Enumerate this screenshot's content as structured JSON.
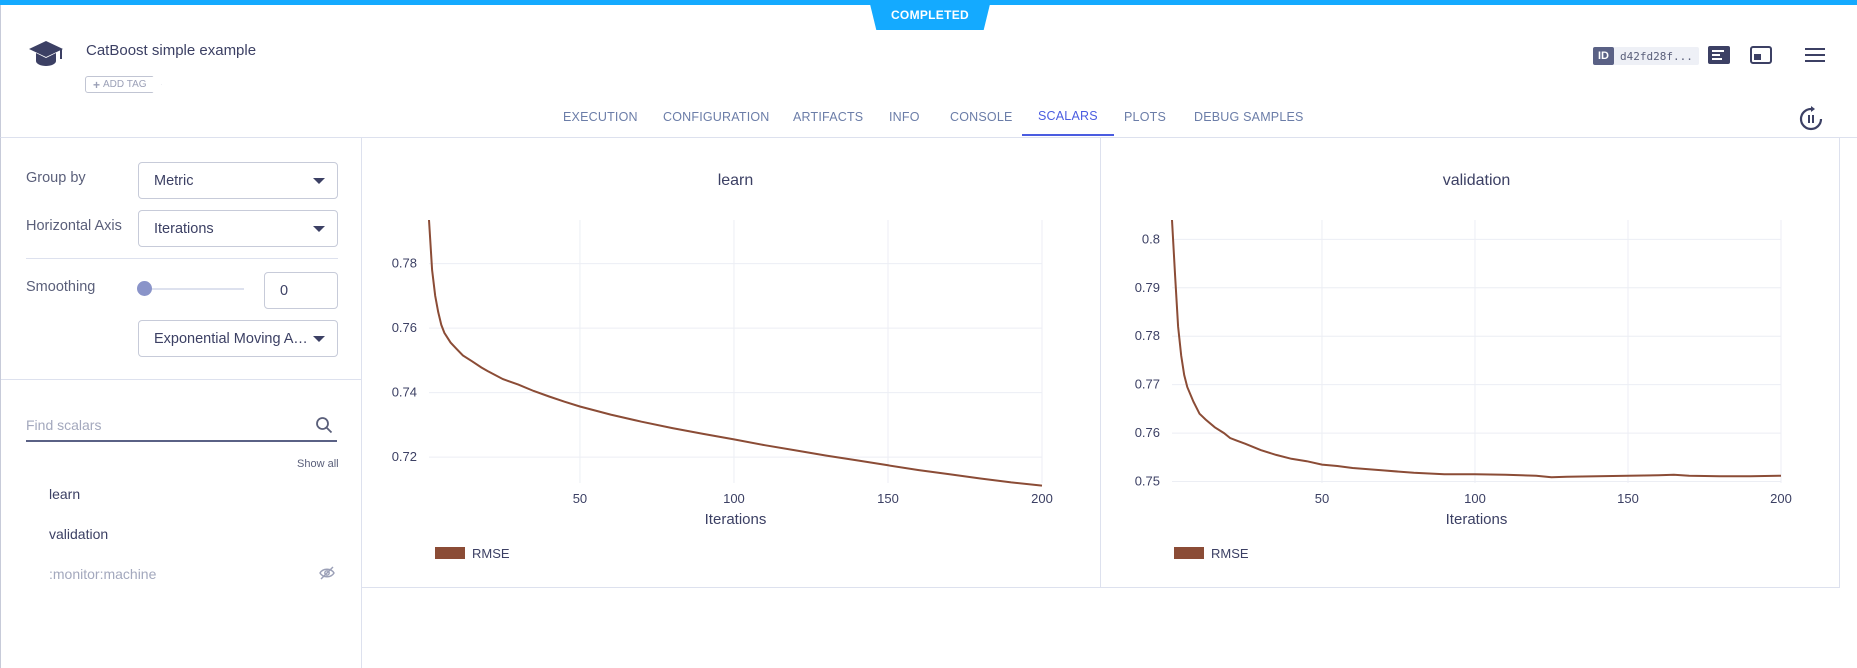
{
  "status": "COMPLETED",
  "experiment": {
    "title": "CatBoost simple example",
    "add_tag": "ADD TAG",
    "id_label": "ID",
    "id_value": "d42fd28f..."
  },
  "icons": {
    "logo": "graduation-cap-icon",
    "details": "details-panel-icon",
    "layout": "layout-icon",
    "menu": "hamburger-menu-icon",
    "refresh": "auto-refresh-icon",
    "search": "search-icon",
    "hidden": "eye-off-icon"
  },
  "tabs": [
    {
      "label": "EXECUTION",
      "active": false
    },
    {
      "label": "CONFIGURATION",
      "active": false
    },
    {
      "label": "ARTIFACTS",
      "active": false
    },
    {
      "label": "INFO",
      "active": false
    },
    {
      "label": "CONSOLE",
      "active": false
    },
    {
      "label": "SCALARS",
      "active": true
    },
    {
      "label": "PLOTS",
      "active": false
    },
    {
      "label": "DEBUG SAMPLES",
      "active": false
    }
  ],
  "sidebar": {
    "group_by_label": "Group by",
    "group_by_value": "Metric",
    "horizontal_axis_label": "Horizontal Axis",
    "horizontal_axis_value": "Iterations",
    "smoothing_label": "Smoothing",
    "smoothing_value": "0",
    "smoothing_slider_fraction": 0,
    "smoothing_type": "Exponential Moving Average",
    "search_placeholder": "Find scalars",
    "show_all": "Show all",
    "metrics": [
      {
        "label": "learn",
        "hidden": false
      },
      {
        "label": "validation",
        "hidden": false
      },
      {
        "label": ":monitor:machine",
        "hidden": true
      }
    ]
  },
  "colors": {
    "accent": "#14aaff",
    "active_tab": "#4a5ce0",
    "series": "#8b4c36"
  },
  "chart_data": [
    {
      "type": "line",
      "title": "learn",
      "xlabel": "Iterations",
      "ylabel": "",
      "xlim": [
        1,
        200
      ],
      "ylim": [
        0.712,
        0.7935
      ],
      "xticks": [
        50,
        100,
        150,
        200
      ],
      "yticks": [
        0.72,
        0.74,
        0.76,
        0.78
      ],
      "ytick_labels": [
        "0.72",
        "0.74",
        "0.76",
        "0.78"
      ],
      "grid": true,
      "legend_position": "bottom-left",
      "series": [
        {
          "name": "RMSE",
          "color": "#8b4c36",
          "x": [
            1,
            2,
            3,
            4,
            5,
            6,
            8,
            10,
            12,
            15,
            18,
            20,
            25,
            30,
            35,
            40,
            45,
            50,
            60,
            70,
            80,
            90,
            100,
            110,
            120,
            130,
            140,
            150,
            160,
            170,
            180,
            190,
            200
          ],
          "y": [
            0.7935,
            0.778,
            0.77,
            0.765,
            0.761,
            0.7585,
            0.7555,
            0.7535,
            0.7515,
            0.7497,
            0.7478,
            0.7467,
            0.7442,
            0.7425,
            0.7405,
            0.7388,
            0.7372,
            0.7357,
            0.7332,
            0.731,
            0.729,
            0.7272,
            0.7255,
            0.7237,
            0.7221,
            0.7205,
            0.719,
            0.7175,
            0.716,
            0.7147,
            0.7134,
            0.7122,
            0.7112
          ]
        }
      ]
    },
    {
      "type": "line",
      "title": "validation",
      "xlabel": "Iterations",
      "ylabel": "",
      "xlim": [
        1,
        200
      ],
      "ylim": [
        0.7497,
        0.804
      ],
      "xticks": [
        50,
        100,
        150,
        200
      ],
      "yticks": [
        0.75,
        0.76,
        0.77,
        0.78,
        0.79,
        0.8
      ],
      "ytick_labels": [
        "0.75",
        "0.76",
        "0.77",
        "0.78",
        "0.79",
        "0.8"
      ],
      "grid": true,
      "legend_position": "bottom-left",
      "series": [
        {
          "name": "RMSE",
          "color": "#8b4c36",
          "x": [
            1,
            2,
            3,
            4,
            5,
            6,
            8,
            10,
            12,
            15,
            18,
            20,
            22,
            25,
            28,
            30,
            35,
            40,
            45,
            50,
            55,
            60,
            70,
            80,
            90,
            100,
            110,
            120,
            125,
            130,
            140,
            150,
            160,
            165,
            170,
            180,
            190,
            200
          ],
          "y": [
            0.804,
            0.7925,
            0.782,
            0.776,
            0.772,
            0.7695,
            0.7665,
            0.764,
            0.7628,
            0.7612,
            0.76,
            0.759,
            0.7585,
            0.7578,
            0.757,
            0.7565,
            0.7555,
            0.7547,
            0.7542,
            0.7535,
            0.7532,
            0.7528,
            0.7523,
            0.7518,
            0.7515,
            0.7515,
            0.7514,
            0.7512,
            0.7509,
            0.751,
            0.7511,
            0.7512,
            0.7513,
            0.7514,
            0.7512,
            0.7511,
            0.7511,
            0.7512
          ]
        }
      ]
    }
  ]
}
